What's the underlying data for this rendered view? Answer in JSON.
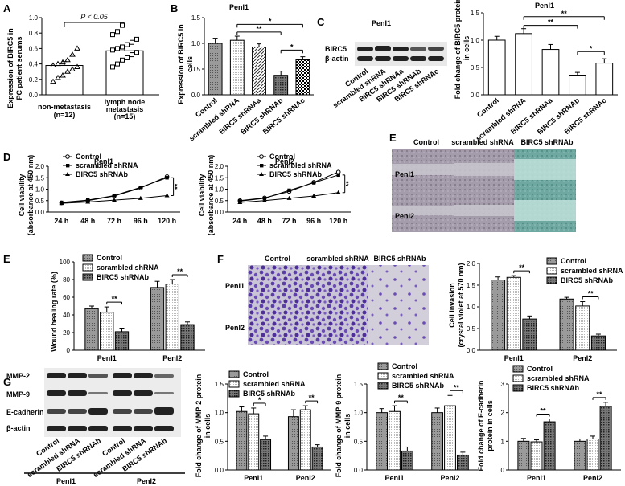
{
  "panels": {
    "A": {
      "label": "A",
      "ylabel": "Expression of BIRC5 in PC patient serums",
      "groups": [
        "non-metastasis",
        "lymph node metastasis"
      ],
      "ns": [
        "(n=12)",
        "(n=15)"
      ],
      "sig": "P < 0.05"
    },
    "B": {
      "label": "B",
      "title": "PenI1",
      "ylabel": "Expression of BIRC5 in cells"
    },
    "C": {
      "label": "C",
      "title": "PenI1",
      "bands": [
        "BIRC5",
        "β-actin"
      ],
      "ylabel": "Fold change of BIRC5 protein in cells"
    },
    "D": {
      "label": "D",
      "ylabel": "Cell viability (absorbance at 450 nm)"
    },
    "E_img": {
      "label": "E",
      "cols": [
        "Control",
        "scrambled shRNA",
        "BIRC5 shRNAb"
      ],
      "rows": [
        "PenI1",
        "PenI2"
      ]
    },
    "E_chart": {
      "label": "E",
      "ylabel": "Wound healing rate (%)"
    },
    "F": {
      "label": "F",
      "cols": [
        "Control",
        "scrambled shRNA",
        "BIRC5 shRNAb"
      ],
      "rows": [
        "PenI1",
        "PenI2"
      ],
      "ylabel": "Cell invasion (crystal violet at 570 nm)"
    },
    "G": {
      "label": "G",
      "bands": [
        "MMP-2",
        "MMP-9",
        "E-cadherin",
        "β-actin"
      ],
      "lanes": [
        "Control",
        "scrambled shRNA",
        "BIRC5 shRNAb"
      ],
      "groups": [
        "PenI1",
        "PenI2"
      ]
    }
  },
  "colors": {
    "control": "#8a8a8a",
    "scrambled": "#ffffff",
    "knockdown": "#555555",
    "invasion_stain": "#6a4ab0",
    "wound_cell": "#9b8fa0",
    "wound_gap": "#c9c7cf",
    "wound_teal": "#6aa8a0"
  },
  "chart_data": [
    {
      "id": "A",
      "type": "scatter",
      "categories": [
        "non-metastasis",
        "lymph node metastasis"
      ],
      "bars": [
        0.38,
        0.57
      ],
      "errors": [
        0.05,
        0.05
      ],
      "points": [
        [
          0.17,
          0.22,
          0.25,
          0.3,
          0.33,
          0.36,
          0.38,
          0.4,
          0.42,
          0.45,
          0.52,
          0.6
        ],
        [
          0.36,
          0.4,
          0.45,
          0.48,
          0.52,
          0.55,
          0.58,
          0.6,
          0.62,
          0.65,
          0.68,
          0.72,
          0.78,
          0.82,
          0.9
        ]
      ],
      "ylabel": "Expression of BIRC5 in PC patient serums",
      "ylim": [
        0,
        1.0
      ],
      "ticks": [
        0.0,
        0.2,
        0.4,
        0.6,
        0.8,
        1.0
      ]
    },
    {
      "id": "B",
      "type": "bar",
      "title": "PenI1",
      "categories": [
        "Control",
        "scrambled shRNA",
        "BIRC5 shRNAa",
        "BIRC5 shRNAb",
        "BIRC5 shRNAc"
      ],
      "values": [
        1.0,
        1.06,
        0.93,
        0.38,
        0.68
      ],
      "errors": [
        0.1,
        0.08,
        0.06,
        0.08,
        0.06
      ],
      "ylabel": "Expression of BIRC5 in cells",
      "ylim": [
        0,
        1.5
      ],
      "ticks": [
        0.0,
        0.5,
        1.0,
        1.5
      ],
      "sig": [
        {
          "from": 1,
          "to": 4,
          "y": 1.37,
          "text": "*"
        },
        {
          "from": 1,
          "to": 3,
          "y": 1.22,
          "text": "**"
        },
        {
          "from": 3,
          "to": 4,
          "y": 0.87,
          "text": "*"
        }
      ]
    },
    {
      "id": "C",
      "type": "bar",
      "title": "PenI1",
      "categories": [
        "Control",
        "scrambled shRNA",
        "BIRC5 shRNAa",
        "BIRC5 shRNAb",
        "BIRC5 shRNAc"
      ],
      "values": [
        1.0,
        1.12,
        0.83,
        0.36,
        0.58
      ],
      "errors": [
        0.07,
        0.09,
        0.09,
        0.05,
        0.08
      ],
      "ylabel": "Fold change of BIRC5 protein in cells",
      "ylim": [
        0,
        1.5
      ],
      "ticks": [
        0.0,
        0.5,
        1.0,
        1.5
      ],
      "sig": [
        {
          "from": 1,
          "to": 4,
          "y": 1.43,
          "text": "**"
        },
        {
          "from": 1,
          "to": 3,
          "y": 1.27,
          "text": "**"
        },
        {
          "from": 3,
          "to": 4,
          "y": 0.79,
          "text": "*"
        }
      ]
    },
    {
      "id": "D1",
      "type": "line",
      "title": "PenI1",
      "x": [
        "24 h",
        "48 h",
        "72 h",
        "96 h",
        "120 h"
      ],
      "series": [
        {
          "name": "Control",
          "values": [
            0.4,
            0.5,
            0.7,
            1.05,
            1.55
          ]
        },
        {
          "name": "scrambled shRNA",
          "values": [
            0.42,
            0.52,
            0.72,
            1.08,
            1.5
          ]
        },
        {
          "name": "BIRC5 shRNAb",
          "values": [
            0.38,
            0.44,
            0.52,
            0.6,
            0.72
          ]
        }
      ],
      "ylabel": "Cell viability (absorbance at 450 nm)",
      "ylim": [
        0,
        2.0
      ],
      "ticks": [
        0.0,
        0.5,
        1.0,
        1.5,
        2.0
      ],
      "sig": "**"
    },
    {
      "id": "D2",
      "type": "line",
      "title": "PenI2",
      "x": [
        "24 h",
        "48 h",
        "72 h",
        "96 h",
        "120 h"
      ],
      "series": [
        {
          "name": "Control",
          "values": [
            0.5,
            0.62,
            0.9,
            1.3,
            1.75
          ]
        },
        {
          "name": "scrambled shRNA",
          "values": [
            0.48,
            0.6,
            0.95,
            1.28,
            1.62
          ]
        },
        {
          "name": "BIRC5 shRNAb",
          "values": [
            0.42,
            0.5,
            0.6,
            0.7,
            0.85
          ]
        }
      ],
      "ylabel": "Cell viability (absorbance at 450 nm)",
      "ylim": [
        0,
        2.0
      ],
      "ticks": [
        0.0,
        0.5,
        1.0,
        1.5,
        2.0
      ],
      "sig": "**"
    },
    {
      "id": "E",
      "type": "bar",
      "categories": [
        "PenI1",
        "PenI2"
      ],
      "series": [
        {
          "name": "Control",
          "values": [
            47,
            71
          ],
          "errors": [
            3,
            7
          ]
        },
        {
          "name": "scrambled shRNA",
          "values": [
            43,
            75
          ],
          "errors": [
            6,
            5
          ]
        },
        {
          "name": "BIRC5 shRNAb",
          "values": [
            21,
            29
          ],
          "errors": [
            4,
            3
          ]
        }
      ],
      "ylabel": "Wound healing rate (%)",
      "ylim": [
        0,
        100
      ],
      "ticks": [
        0,
        20,
        40,
        60,
        80,
        100
      ],
      "sig": [
        "**",
        "**"
      ]
    },
    {
      "id": "F",
      "type": "bar",
      "categories": [
        "PenI1",
        "PenI2"
      ],
      "series": [
        {
          "name": "Control",
          "values": [
            1.62,
            1.18
          ],
          "errors": [
            0.07,
            0.04
          ]
        },
        {
          "name": "scrambled shRNA",
          "values": [
            1.68,
            1.02
          ],
          "errors": [
            0.04,
            0.1
          ]
        },
        {
          "name": "BIRC5 shRNAb",
          "values": [
            0.72,
            0.33
          ],
          "errors": [
            0.07,
            0.04
          ]
        }
      ],
      "ylabel": "Cell invasion (crystal violet at 570 nm)",
      "ylim": [
        0,
        2.0
      ],
      "ticks": [
        0.0,
        0.5,
        1.0,
        1.5,
        2.0
      ],
      "sig": [
        "**",
        "**"
      ]
    },
    {
      "id": "G1",
      "type": "bar",
      "categories": [
        "PenI1",
        "PenI2"
      ],
      "series": [
        {
          "name": "Control",
          "values": [
            1.02,
            0.93
          ],
          "errors": [
            0.08,
            0.12
          ]
        },
        {
          "name": "scrambled shRNA",
          "values": [
            0.98,
            1.05
          ],
          "errors": [
            0.1,
            0.07
          ]
        },
        {
          "name": "BIRC5 shRNAb",
          "values": [
            0.53,
            0.4
          ],
          "errors": [
            0.06,
            0.04
          ]
        }
      ],
      "ylabel": "Fold change of MMP-2 protein in cells",
      "ylim": [
        0,
        1.5
      ],
      "ticks": [
        0.0,
        0.5,
        1.0,
        1.5
      ],
      "sig": [
        "*",
        "**"
      ]
    },
    {
      "id": "G2",
      "type": "bar",
      "categories": [
        "PenI1",
        "PenI2"
      ],
      "series": [
        {
          "name": "Control",
          "values": [
            1.0,
            1.0
          ],
          "errors": [
            0.07,
            0.08
          ]
        },
        {
          "name": "scrambled shRNA",
          "values": [
            1.02,
            1.12
          ],
          "errors": [
            0.1,
            0.18
          ]
        },
        {
          "name": "BIRC5 shRNAb",
          "values": [
            0.33,
            0.26
          ],
          "errors": [
            0.07,
            0.05
          ]
        }
      ],
      "ylabel": "Fold change of MMP-9 protein in cells",
      "ylim": [
        0,
        1.5
      ],
      "ticks": [
        0.0,
        0.5,
        1.0,
        1.5
      ],
      "sig": [
        "**",
        "**"
      ]
    },
    {
      "id": "G3",
      "type": "bar",
      "categories": [
        "PenI1",
        "PenI2"
      ],
      "series": [
        {
          "name": "Control",
          "values": [
            1.0,
            1.0
          ],
          "errors": [
            0.1,
            0.08
          ]
        },
        {
          "name": "scrambled shRNA",
          "values": [
            0.98,
            1.08
          ],
          "errors": [
            0.07,
            0.1
          ]
        },
        {
          "name": "BIRC5 shRNAb",
          "values": [
            1.68,
            2.22
          ],
          "errors": [
            0.1,
            0.14
          ]
        }
      ],
      "ylabel": "Fold change of E-cadherin protein in cells",
      "ylim": [
        0,
        3
      ],
      "ticks": [
        0,
        1,
        2,
        3
      ],
      "sig": [
        "**",
        "**"
      ]
    }
  ]
}
